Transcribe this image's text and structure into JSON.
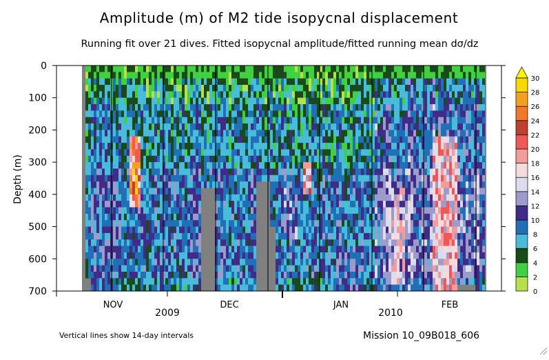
{
  "chart_data": {
    "type": "heatmap",
    "title": "Amplitude (m) of M2 tide isopycnal displacement",
    "subtitle": "Running fit over 21 dives. Fitted isopycnal amplitude/fitted running mean dσ/dz",
    "ylabel": "Depth (m)",
    "ylim": [
      0,
      700
    ],
    "y_reversed": true,
    "y_ticks": [
      0,
      100,
      200,
      300,
      400,
      500,
      600,
      700
    ],
    "x_month_labels": [
      "NOV",
      "DEC",
      "JAN",
      "FEB"
    ],
    "x_year_labels": [
      "2009",
      "2010"
    ],
    "colorbar": {
      "levels": [
        0,
        2,
        4,
        6,
        8,
        10,
        12,
        14,
        16,
        18,
        20,
        22,
        24,
        26,
        28,
        30
      ],
      "colors": [
        "#b8e04a",
        "#40d040",
        "#1a4a1a",
        "#48bcd8",
        "#2070b8",
        "#402c88",
        "#9c9ccc",
        "#dcdcec",
        "#f4dcdc",
        "#f49c9c",
        "#f05858",
        "#c04030",
        "#f07828",
        "#f4a020",
        "#f8d800",
        "#f8f800"
      ],
      "extend": "max"
    },
    "missing_color": "#808080",
    "footnote": "Vertical lines show 14-day intervals",
    "mission": "Mission 10_09B018_606"
  }
}
